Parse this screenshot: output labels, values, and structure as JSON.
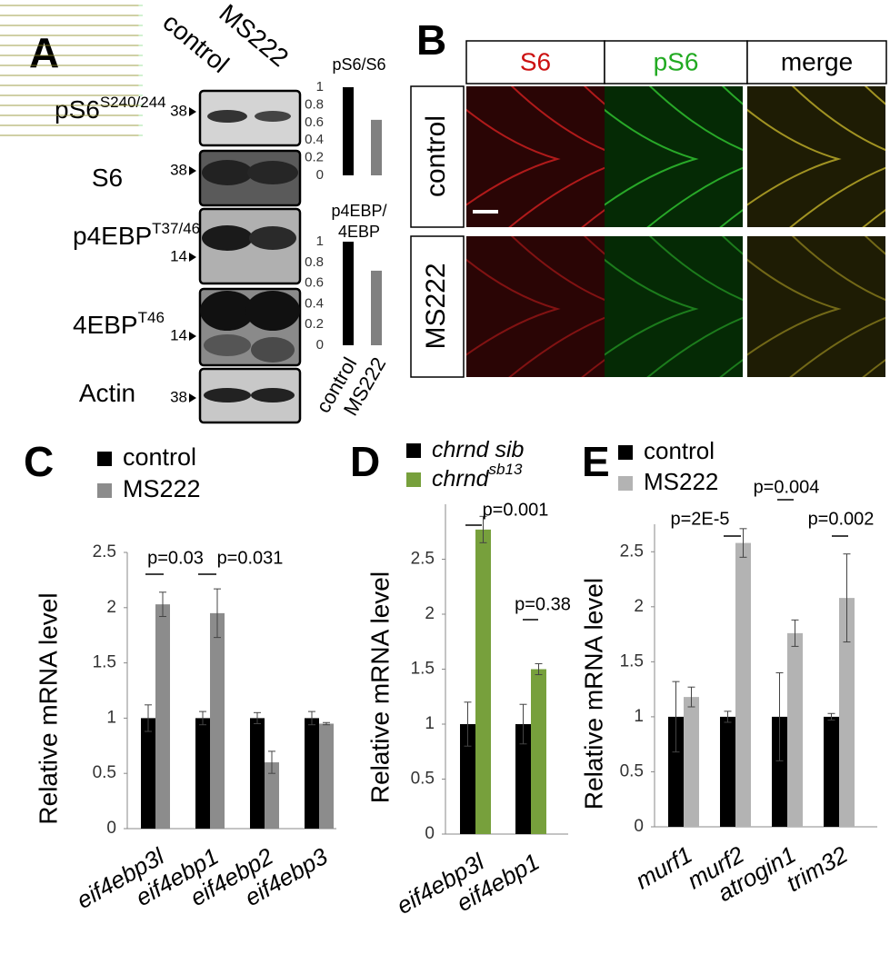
{
  "panel_labels": [
    "A",
    "B",
    "C",
    "D",
    "E"
  ],
  "blot": {
    "columns": [
      "control",
      "MS222"
    ],
    "rows": [
      {
        "label": "pS6",
        "superscript": "S240/244",
        "marker": "38"
      },
      {
        "label": "S6",
        "marker": "38"
      },
      {
        "label": "p4EBP",
        "superscript": "T37/46",
        "marker": "14"
      },
      {
        "label": "4EBP",
        "superscript": "T46",
        "marker": "14"
      },
      {
        "label": "Actin",
        "marker": "38"
      }
    ]
  },
  "imaging": {
    "columns": [
      "S6",
      "pS6",
      "merge"
    ],
    "column_colors": [
      "#cc1111",
      "#22aa22",
      "#000000"
    ],
    "rows": [
      "control",
      "MS222"
    ]
  },
  "chart_data": [
    {
      "type": "bar",
      "title": "pS6/S6",
      "values": [
        1,
        0.63
      ],
      "colors": [
        "#000000",
        "#808080"
      ],
      "ylim": [
        0,
        1
      ],
      "yticks": [
        0,
        0.2,
        0.4,
        0.6,
        0.8,
        1
      ]
    },
    {
      "type": "bar",
      "title": [
        "p4EBP/",
        "4EBP"
      ],
      "categories": [
        "control",
        "MS222"
      ],
      "values": [
        1,
        0.72
      ],
      "colors": [
        "#000000",
        "#808080"
      ],
      "ylim": [
        0,
        1
      ],
      "yticks": [
        0,
        0.2,
        0.4,
        0.6,
        0.8,
        1
      ]
    },
    {
      "type": "bar",
      "y_label": "Relative mRNA level",
      "categories": [
        "eif4ebp3l",
        "eif4ebp1",
        "eif4ebp2",
        "eif4ebp3"
      ],
      "series": [
        {
          "name": "control",
          "color": "#000000",
          "values": [
            1,
            1,
            1,
            1
          ],
          "errors": [
            0.12,
            0.06,
            0.05,
            0.06
          ]
        },
        {
          "name": "MS222",
          "color": "#8c8c8c",
          "values": [
            2.03,
            1.95,
            0.6,
            0.95
          ],
          "errors": [
            0.11,
            0.22,
            0.1,
            0.01
          ]
        }
      ],
      "annotations": [
        "p=0.03",
        "p=0.031"
      ],
      "ylim": [
        0,
        2.5
      ],
      "yticks": [
        0,
        0.5,
        1,
        1.5,
        2,
        2.5
      ]
    },
    {
      "type": "bar",
      "y_label": "Relative mRNA level",
      "categories": [
        "eif4ebp3l",
        "eif4ebp1"
      ],
      "series": [
        {
          "name": "chrnd sib",
          "color": "#000000",
          "values": [
            1,
            1
          ],
          "errors": [
            0.2,
            0.18
          ]
        },
        {
          "name": "chrnd",
          "name_superscript": "sb13",
          "color": "#77a03c",
          "values": [
            2.77,
            1.5
          ],
          "errors": [
            0.12,
            0.05
          ]
        }
      ],
      "annotations": [
        "p=0.001",
        "p=0.38"
      ],
      "ylim": [
        0,
        3
      ],
      "yticks": [
        0,
        0.5,
        1,
        1.5,
        2,
        2.5
      ]
    },
    {
      "type": "bar",
      "y_label": "Relative mRNA level",
      "categories": [
        "murf1",
        "murf2",
        "atrogin1",
        "trim32"
      ],
      "series": [
        {
          "name": "control",
          "color": "#000000",
          "values": [
            1,
            1,
            1,
            1
          ],
          "errors": [
            0.32,
            0.05,
            0.4,
            0.03
          ]
        },
        {
          "name": "MS222",
          "color": "#b3b3b3",
          "values": [
            1.18,
            2.58,
            1.76,
            2.08
          ],
          "errors": [
            0.09,
            0.13,
            0.12,
            0.4
          ]
        }
      ],
      "annotations": [
        "p=2E-5",
        "p=0.004",
        "p=0.002"
      ],
      "ylim": [
        0,
        2.75
      ],
      "yticks": [
        0,
        0.5,
        1,
        1.5,
        2,
        2.5
      ]
    }
  ]
}
